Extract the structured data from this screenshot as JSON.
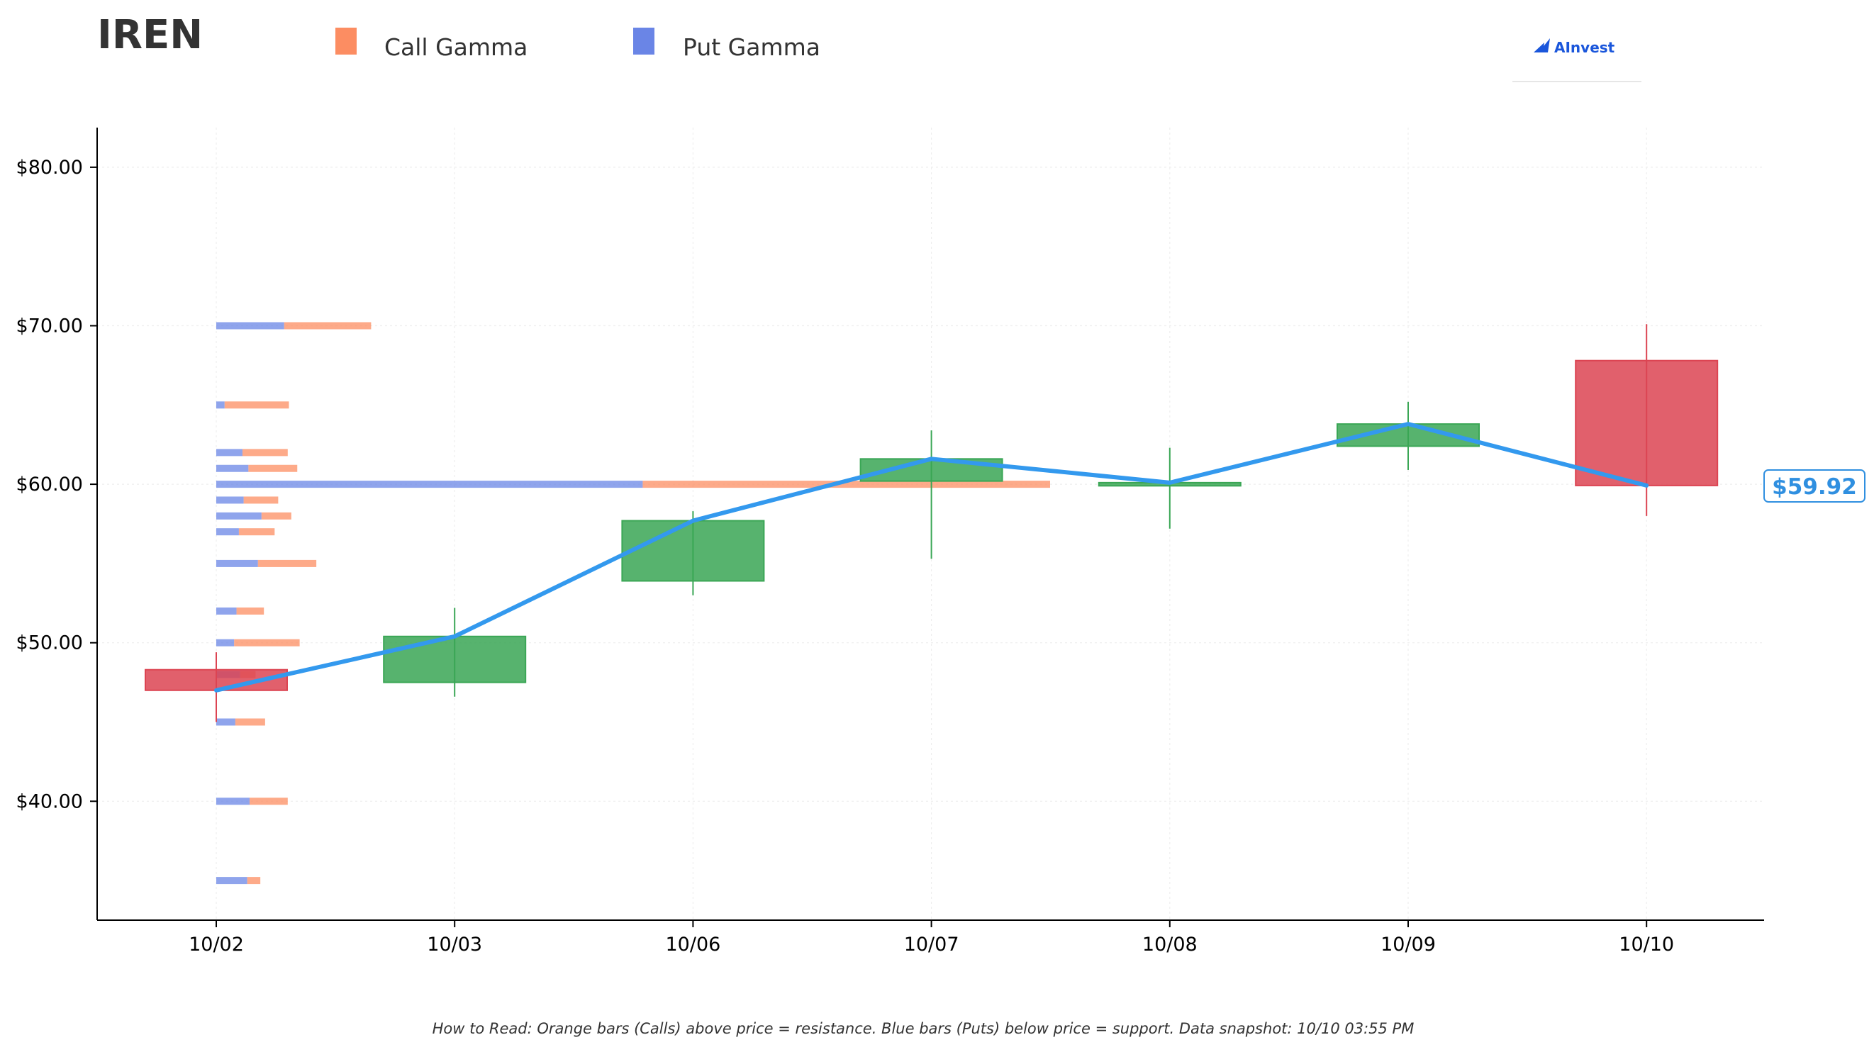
{
  "ticker": "IREN",
  "legend": [
    {
      "label": "Call Gamma",
      "color": "#fc8d62"
    },
    {
      "label": "Put Gamma",
      "color": "#6a85e6"
    }
  ],
  "brand": {
    "name": "AInvest",
    "icon": "ainvest-logo-icon"
  },
  "current_price_label": "$59.92",
  "footnote": "How to Read: Orange bars (Calls) above price = resistance. Blue bars (Puts) below price = support. Data snapshot: 10/10 03:55 PM",
  "colors": {
    "up": "#3aa655",
    "down": "#dc4452",
    "line": "#3399ee",
    "call": "#fc8d62",
    "put": "#6a85e6",
    "axis": "#000000",
    "grid": "#eeeeee"
  },
  "chart_data": {
    "type": "candlestick",
    "title": "IREN",
    "categories": [
      "10/02",
      "10/03",
      "10/06",
      "10/07",
      "10/08",
      "10/09",
      "10/10"
    ],
    "candles": [
      {
        "date": "10/02",
        "open": 48.3,
        "high": 49.4,
        "low": 45.0,
        "close": 47.0
      },
      {
        "date": "10/03",
        "open": 47.5,
        "high": 52.2,
        "low": 46.6,
        "close": 50.4
      },
      {
        "date": "10/06",
        "open": 53.9,
        "high": 58.3,
        "low": 53.0,
        "close": 57.7
      },
      {
        "date": "10/07",
        "open": 60.2,
        "high": 63.4,
        "low": 55.3,
        "close": 61.6
      },
      {
        "date": "10/08",
        "open": 59.9,
        "high": 62.3,
        "low": 57.2,
        "close": 60.1
      },
      {
        "date": "10/09",
        "open": 62.4,
        "high": 65.2,
        "low": 60.9,
        "close": 63.8
      },
      {
        "date": "10/10",
        "open": 67.8,
        "high": 70.1,
        "low": 58.0,
        "close": 59.92
      }
    ],
    "close_line": [
      47.0,
      50.4,
      57.7,
      61.6,
      60.1,
      63.8,
      59.92
    ],
    "gamma": [
      {
        "strike": 70,
        "put": 0.57,
        "call": 0.73
      },
      {
        "strike": 65,
        "put": 0.07,
        "call": 0.54
      },
      {
        "strike": 62,
        "put": 0.22,
        "call": 0.38
      },
      {
        "strike": 61,
        "put": 0.27,
        "call": 0.41
      },
      {
        "strike": 60,
        "put": 3.58,
        "call": 3.42
      },
      {
        "strike": 59,
        "put": 0.23,
        "call": 0.29
      },
      {
        "strike": 58,
        "put": 0.38,
        "call": 0.25
      },
      {
        "strike": 57,
        "put": 0.19,
        "call": 0.3
      },
      {
        "strike": 55,
        "put": 0.35,
        "call": 0.49
      },
      {
        "strike": 52,
        "put": 0.17,
        "call": 0.23
      },
      {
        "strike": 50,
        "put": 0.15,
        "call": 0.55
      },
      {
        "strike": 48,
        "put": 0.2,
        "call": 0.13
      },
      {
        "strike": 45,
        "put": 0.16,
        "call": 0.25
      },
      {
        "strike": 40,
        "put": 0.28,
        "call": 0.32
      },
      {
        "strike": 35,
        "put": 0.26,
        "call": 0.11
      }
    ],
    "ylim": [
      32.5,
      82.5
    ],
    "yticks": [
      40,
      50,
      60,
      70,
      80
    ],
    "ytick_labels": [
      "$40.00",
      "$50.00",
      "$60.00",
      "$70.00",
      "$80.00"
    ],
    "grid": true,
    "legend_position": "top-left"
  }
}
